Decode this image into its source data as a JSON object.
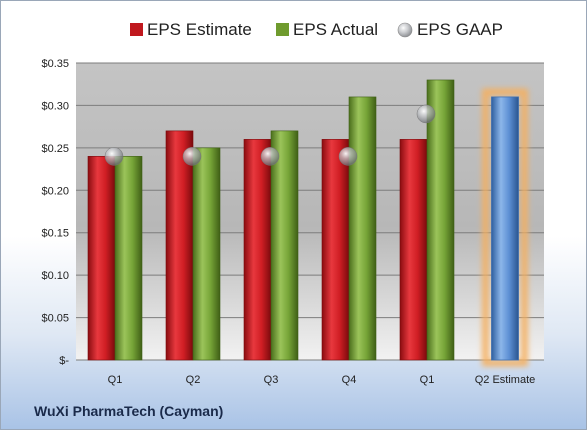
{
  "company_name": "WuXi PharmaTech (Cayman)",
  "chart_data": {
    "type": "bar",
    "categories": [
      "Q1",
      "Q2",
      "Q3",
      "Q4",
      "Q1",
      "Q2 Estimate"
    ],
    "series": [
      {
        "name": "EPS Estimate",
        "values": [
          0.24,
          0.27,
          0.26,
          0.26,
          0.26,
          null
        ],
        "color": "#c0181e"
      },
      {
        "name": "EPS Actual",
        "values": [
          0.24,
          0.25,
          0.27,
          0.31,
          0.33,
          null
        ],
        "color": "#6f9b2e"
      },
      {
        "name": "EPS GAAP",
        "values": [
          0.24,
          0.24,
          0.24,
          0.24,
          0.29,
          null
        ],
        "color": "#a8aab0"
      }
    ],
    "estimate": {
      "category": "Q2 Estimate",
      "value": 0.31,
      "color": "#5b8fd4",
      "glow": "#f5b060"
    },
    "ylim": [
      0,
      0.35
    ],
    "yticks": [
      0,
      0.05,
      0.1,
      0.15,
      0.2,
      0.25,
      0.3,
      0.35
    ],
    "ytick_labels": [
      "$-",
      "$0.05",
      "$0.10",
      "$0.15",
      "$0.20",
      "$0.25",
      "$0.30",
      "$0.35"
    ],
    "legend_position": "top",
    "grid": true
  }
}
